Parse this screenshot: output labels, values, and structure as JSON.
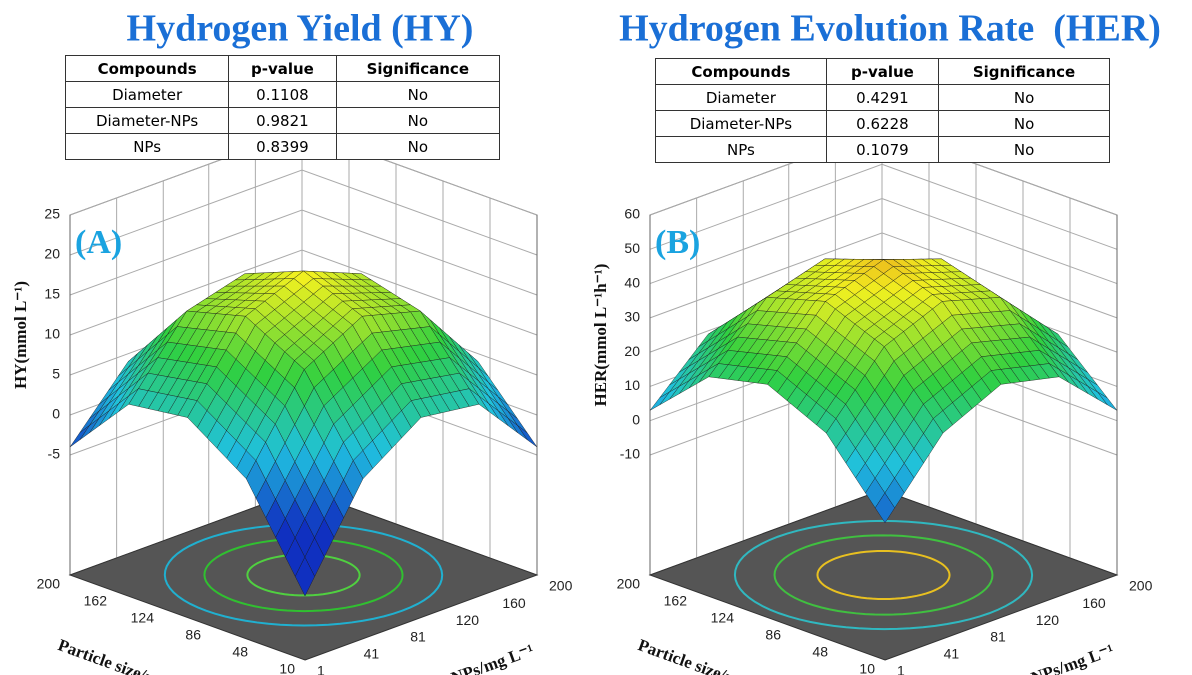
{
  "chart_data": [
    {
      "type": "surface",
      "title": "Hydrogen Yield (HY)",
      "panel_label": "(A)",
      "table": {
        "columns": [
          "Compounds",
          "p-value",
          "Significance"
        ],
        "rows": [
          [
            "Diameter",
            "0.1108",
            "No"
          ],
          [
            "Diameter-NPs",
            "0.9821",
            "No"
          ],
          [
            "NPs",
            "0.8399",
            "No"
          ]
        ]
      },
      "xlabel": "NPs/mg L⁻¹",
      "ylabel": "Particle size/nm",
      "zlabel": "HY(mmol L⁻¹)",
      "xlim": [
        1,
        200
      ],
      "xticks": [
        1,
        41,
        81,
        120,
        160,
        200
      ],
      "ylim": [
        10,
        200
      ],
      "yticks": [
        10,
        48,
        86,
        124,
        162,
        200
      ],
      "zlim": [
        -5,
        25
      ],
      "zticks": [
        -5,
        0,
        5,
        10,
        15,
        20,
        25
      ],
      "z": [
        [
          -12,
          0,
          5,
          4,
          -4
        ],
        [
          0,
          11,
          15,
          13,
          4
        ],
        [
          5,
          15,
          18,
          15,
          5
        ],
        [
          4,
          13,
          15,
          11,
          0
        ],
        [
          -4,
          4,
          5,
          0,
          -12
        ]
      ]
    },
    {
      "type": "surface",
      "title": "Hydrogen Evolution Rate  (HER)",
      "panel_label": "(B)",
      "table": {
        "columns": [
          "Compounds",
          "p-value",
          "Significance"
        ],
        "rows": [
          [
            "Diameter",
            "0.4291",
            "No"
          ],
          [
            "Diameter-NPs",
            "0.6228",
            "No"
          ],
          [
            "NPs",
            "0.1079",
            "No"
          ]
        ]
      },
      "xlabel": "NPs/mg L⁻¹",
      "ylabel": "Particle size/nm",
      "zlabel": "HER(mmol L⁻¹h⁻¹)",
      "xlim": [
        1,
        200
      ],
      "xticks": [
        1,
        41,
        81,
        120,
        160,
        200
      ],
      "ylim": [
        10,
        200
      ],
      "yticks": [
        10,
        48,
        86,
        124,
        162,
        200
      ],
      "zlim": [
        -10,
        60
      ],
      "zticks": [
        -10,
        0,
        10,
        20,
        30,
        40,
        50,
        60
      ],
      "z": [
        [
          -5,
          15,
          23,
          19,
          3
        ],
        [
          15,
          34,
          41,
          36,
          19
        ],
        [
          23,
          41,
          47,
          41,
          23
        ],
        [
          19,
          36,
          41,
          34,
          15
        ],
        [
          3,
          19,
          23,
          15,
          -5
        ]
      ]
    }
  ]
}
